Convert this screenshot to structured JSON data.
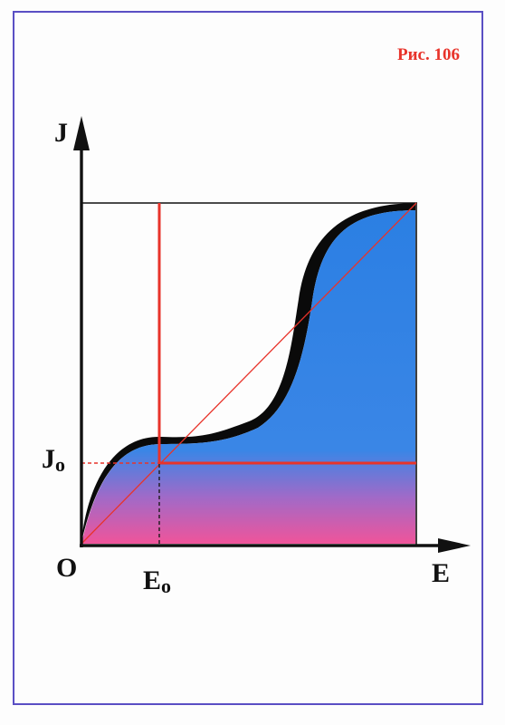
{
  "figure": {
    "label": "Рис. 106"
  },
  "axes": {
    "y_label": "J",
    "x_label": "E",
    "origin_label": "O",
    "x_marker_main": "E",
    "x_marker_sub": "o",
    "y_marker_main": "J",
    "y_marker_sub": "o"
  },
  "colors": {
    "frame": "#5a4fc4",
    "accent_red": "#e8332a",
    "fill_top": "#2b83e6",
    "fill_bottom": "#f0549a",
    "curve_shadow": "#0a0a0a",
    "axis": "#111111"
  }
}
